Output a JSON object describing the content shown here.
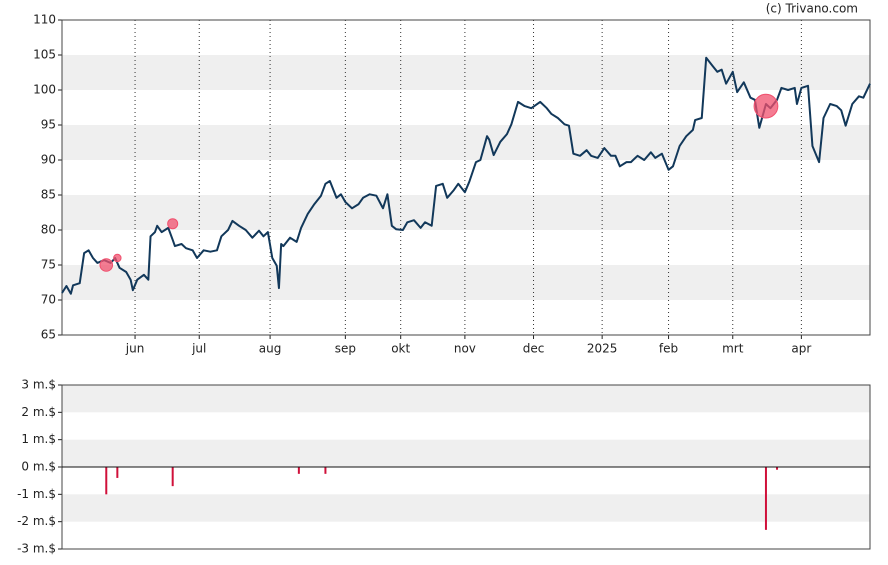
{
  "watermark": "(c) Trivano.com",
  "chart_data": [
    {
      "type": "line",
      "x": [
        0,
        2,
        4,
        5,
        8,
        10,
        12,
        14,
        16,
        19,
        22,
        24,
        26,
        29,
        31,
        32,
        34,
        37,
        39,
        40,
        42,
        43,
        45,
        48,
        50,
        51,
        54,
        56,
        59,
        61,
        64,
        67,
        70,
        72,
        75,
        77,
        80,
        83,
        86,
        89,
        91,
        93,
        95,
        97,
        98,
        99,
        100,
        103,
        106,
        108,
        111,
        114,
        117,
        119,
        121,
        124,
        126,
        128,
        131,
        134,
        136,
        139,
        142,
        145,
        147,
        149,
        151,
        154,
        156,
        159,
        162,
        164,
        167,
        169,
        172,
        174,
        177,
        179,
        182,
        184,
        187,
        189,
        192,
        193,
        195,
        198,
        201,
        203,
        206,
        209,
        212,
        216,
        219,
        221,
        224,
        227,
        229,
        231,
        234,
        237,
        239,
        242,
        245,
        248,
        250,
        252,
        255,
        257,
        260,
        263,
        266,
        268,
        271,
        274,
        276,
        279,
        282,
        285,
        286,
        289,
        291,
        294,
        296,
        298,
        300,
        303,
        305,
        308,
        311,
        313,
        315,
        318,
        320,
        323,
        325,
        328,
        331,
        332,
        334,
        337,
        339,
        342,
        344,
        347,
        350,
        352,
        354,
        357,
        360,
        362,
        365
      ],
      "values": [
        71,
        72,
        70.9,
        72.1,
        72.4,
        76.7,
        77.1,
        76,
        75.3,
        75.7,
        75.3,
        76,
        74.6,
        74,
        72.9,
        71.4,
        72.9,
        73.6,
        72.9,
        79.1,
        79.7,
        80.6,
        79.7,
        80.3,
        78.6,
        77.7,
        78,
        77.4,
        77.1,
        76,
        77.1,
        76.9,
        77.1,
        79.1,
        80,
        81.3,
        80.6,
        80,
        78.9,
        79.9,
        79.1,
        79.7,
        76,
        74.9,
        71.7,
        78,
        77.7,
        78.9,
        78.3,
        80.3,
        82.3,
        83.7,
        84.9,
        86.6,
        87,
        84.6,
        85.1,
        84,
        83.1,
        83.7,
        84.6,
        85.1,
        84.9,
        83.1,
        85.1,
        80.6,
        80.1,
        80,
        81.1,
        81.4,
        80.3,
        81.1,
        80.6,
        86.3,
        86.6,
        84.6,
        85.7,
        86.6,
        85.4,
        86.9,
        89.7,
        90,
        93.4,
        92.9,
        90.7,
        92.6,
        93.7,
        95.1,
        98.3,
        97.7,
        97.4,
        98.3,
        97.4,
        96.6,
        96,
        95.1,
        94.9,
        90.9,
        90.6,
        91.4,
        90.6,
        90.3,
        91.7,
        90.6,
        90.6,
        89.1,
        89.7,
        89.7,
        90.6,
        90,
        91.1,
        90.3,
        90.9,
        88.6,
        89.1,
        92,
        93.4,
        94.3,
        95.7,
        96,
        104.6,
        103.4,
        102.6,
        102.9,
        100.9,
        102.6,
        99.7,
        101.1,
        98.9,
        98.6,
        94.6,
        98,
        97.4,
        98.6,
        100.3,
        100,
        100.3,
        98,
        100.3,
        100.6,
        92,
        89.7,
        96,
        98,
        97.7,
        97.1,
        94.9,
        98,
        99.1,
        98.9,
        100.9
      ],
      "color": "#12385a",
      "markers": {
        "x": [
          20,
          25,
          50,
          318
        ],
        "values": [
          75,
          76,
          80.9,
          97.7
        ],
        "color": "#f0506e"
      },
      "xlim": [
        0,
        365
      ],
      "xticks": [
        {
          "value": 33,
          "label": "jun"
        },
        {
          "value": 62,
          "label": "jul"
        },
        {
          "value": 94,
          "label": "aug"
        },
        {
          "value": 128,
          "label": "sep"
        },
        {
          "value": 153,
          "label": "okt"
        },
        {
          "value": 182,
          "label": "nov"
        },
        {
          "value": 213,
          "label": "dec"
        },
        {
          "value": 244,
          "label": "2025"
        },
        {
          "value": 274,
          "label": "feb"
        },
        {
          "value": 303,
          "label": "mrt"
        },
        {
          "value": 334,
          "label": "apr"
        }
      ],
      "ylim": [
        65,
        110
      ],
      "yticks": [
        65,
        70,
        75,
        80,
        85,
        90,
        95,
        100,
        105,
        110
      ],
      "grid": true
    },
    {
      "type": "bar",
      "x": [
        20,
        25,
        50,
        107,
        119,
        318,
        323
      ],
      "values": [
        -1.0,
        -0.4,
        -0.7,
        -0.25,
        -0.25,
        -2.3,
        -0.1
      ],
      "color": "#d0103a",
      "xlim": [
        0,
        365
      ],
      "ylim": [
        -3,
        3
      ],
      "yticks": [
        {
          "value": -3,
          "label": "-3 m.$"
        },
        {
          "value": -2,
          "label": "-2 m.$"
        },
        {
          "value": -1,
          "label": "-1 m.$"
        },
        {
          "value": 0,
          "label": "0 m.$"
        },
        {
          "value": 1,
          "label": "1 m.$"
        },
        {
          "value": 2,
          "label": "2 m.$"
        },
        {
          "value": 3,
          "label": "3 m.$"
        }
      ],
      "grid": true
    }
  ]
}
